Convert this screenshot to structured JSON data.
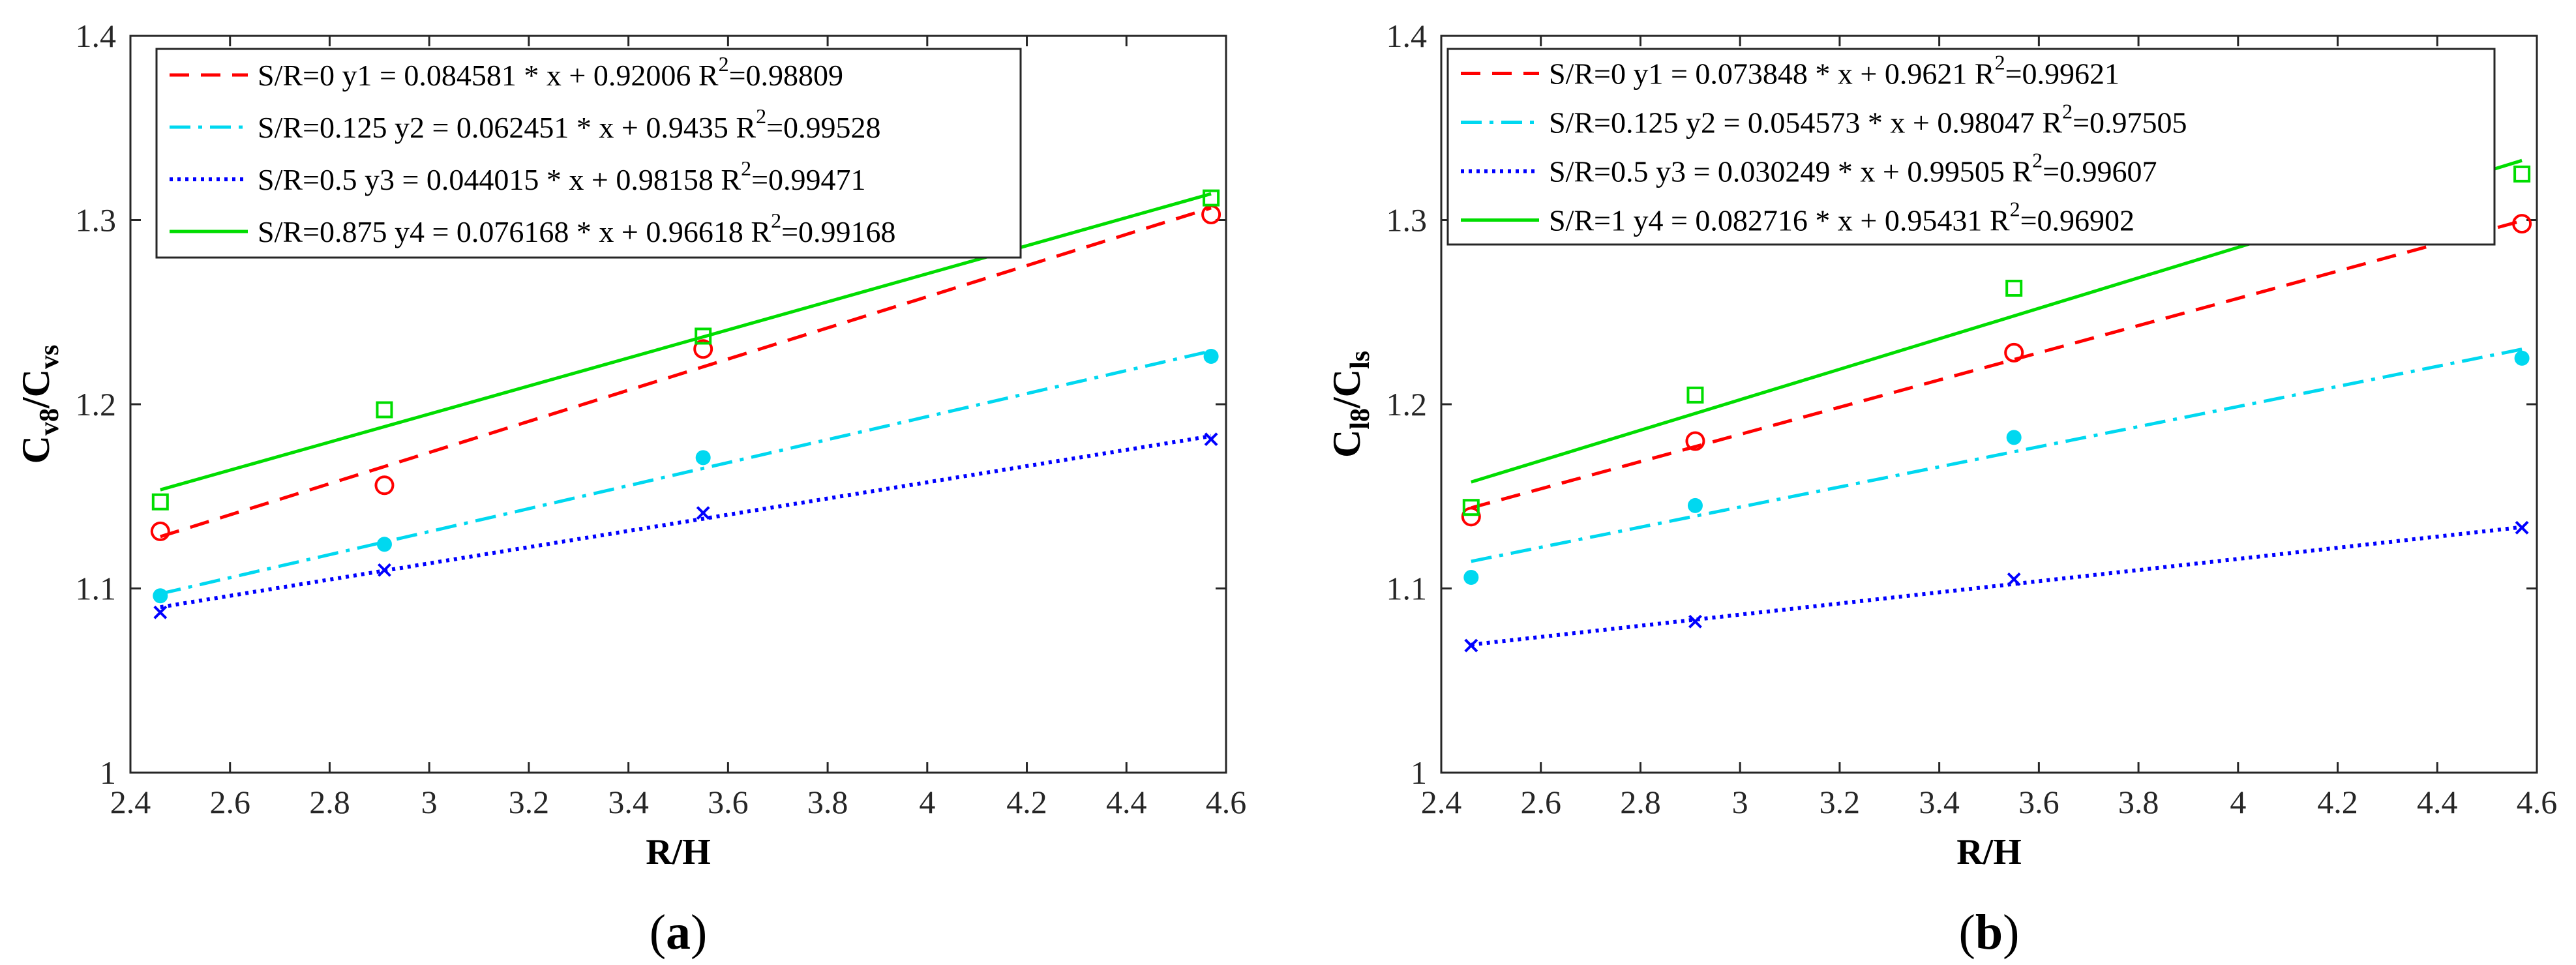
{
  "chart_data": [
    {
      "type": "scatter",
      "panel_label": "a",
      "xlabel": "R/H",
      "ylabel": {
        "base": "C",
        "sub1": "v8",
        "sep": "/C",
        "sub2": "vs"
      },
      "xlim": [
        2.4,
        4.6
      ],
      "ylim": [
        1.0,
        1.4
      ],
      "xticks": [
        "2.4",
        "2.6",
        "2.8",
        "3",
        "3.2",
        "3.4",
        "3.6",
        "3.8",
        "4",
        "4.2",
        "4.4",
        "4.6"
      ],
      "yticks": [
        "1",
        "1.1",
        "1.2",
        "1.3",
        "1.4"
      ],
      "x": [
        2.46,
        2.91,
        3.55,
        4.57
      ],
      "series": [
        {
          "name": "S/R=0",
          "legend_text": "S/R=0  y1 = 0.084581 * x + 0.92006  R",
          "r2": "=0.98809",
          "slope": 0.084581,
          "intercept": 0.92006,
          "values": [
            1.131,
            1.156,
            1.23,
            1.303
          ],
          "color": "#ff0000",
          "marker": "circle",
          "line": "dashed"
        },
        {
          "name": "S/R=0.125",
          "legend_text": "S/R=0.125  y2 = 0.062451 * x + 0.9435 R",
          "r2": "=0.99528",
          "slope": 0.062451,
          "intercept": 0.9435,
          "values": [
            1.096,
            1.124,
            1.171,
            1.226
          ],
          "color": "#00d8f0",
          "marker": "dot",
          "line": "dashdot"
        },
        {
          "name": "S/R=0.5",
          "legend_text": "S/R=0.5  y3 = 0.044015 * x + 0.98158 R",
          "r2": "=0.99471",
          "slope": 0.044015,
          "intercept": 0.98158,
          "values": [
            1.087,
            1.11,
            1.141,
            1.181
          ],
          "color": "#0000ff",
          "marker": "x",
          "line": "dotted"
        },
        {
          "name": "S/R=0.875",
          "legend_text": "S/R=0.875  y4 = 0.076168 * x + 0.96618 R",
          "r2": "=0.99168",
          "slope": 0.076168,
          "intercept": 0.96618,
          "values": [
            1.147,
            1.197,
            1.237,
            1.312
          ],
          "color": "#00dd00",
          "marker": "square",
          "line": "solid"
        }
      ]
    },
    {
      "type": "scatter",
      "panel_label": "b",
      "xlabel": "R/H",
      "ylabel": {
        "base": "C",
        "sub1": "l8",
        "sep": "/C",
        "sub2": "ls"
      },
      "xlim": [
        2.4,
        4.6
      ],
      "ylim": [
        1.0,
        1.4
      ],
      "xticks": [
        "2.4",
        "2.6",
        "2.8",
        "3",
        "3.2",
        "3.4",
        "3.6",
        "3.8",
        "4",
        "4.2",
        "4.4",
        "4.6"
      ],
      "yticks": [
        "1",
        "1.1",
        "1.2",
        "1.3",
        "1.4"
      ],
      "x": [
        2.46,
        2.91,
        3.55,
        4.57
      ],
      "series": [
        {
          "name": "S/R=0",
          "legend_text": "S/R=0 y1 = 0.073848 * x + 0.9621 R",
          "r2": "=0.99621",
          "slope": 0.073848,
          "intercept": 0.9621,
          "values": [
            1.139,
            1.18,
            1.228,
            1.298
          ],
          "color": "#ff0000",
          "marker": "circle",
          "line": "dashed"
        },
        {
          "name": "S/R=0.125",
          "legend_text": "S/R=0.125 y2 = 0.054573 * x + 0.98047 R",
          "r2": "=0.97505",
          "slope": 0.054573,
          "intercept": 0.98047,
          "values": [
            1.106,
            1.145,
            1.182,
            1.225
          ],
          "color": "#00d8f0",
          "marker": "dot",
          "line": "dashdot"
        },
        {
          "name": "S/R=0.5",
          "legend_text": "S/R=0.5 y3 = 0.030249 * x + 0.99505  R",
          "r2": "=0.99607",
          "slope": 0.030249,
          "intercept": 0.99505,
          "values": [
            1.069,
            1.082,
            1.105,
            1.133
          ],
          "color": "#0000ff",
          "marker": "x",
          "line": "dotted"
        },
        {
          "name": "S/R=1",
          "legend_text": "S/R=1 y4 = 0.082716 * x + 0.95431 R",
          "r2": "=0.96902",
          "slope": 0.082716,
          "intercept": 0.95431,
          "values": [
            1.144,
            1.205,
            1.263,
            1.325
          ],
          "color": "#00dd00",
          "marker": "square",
          "line": "solid"
        }
      ]
    }
  ]
}
